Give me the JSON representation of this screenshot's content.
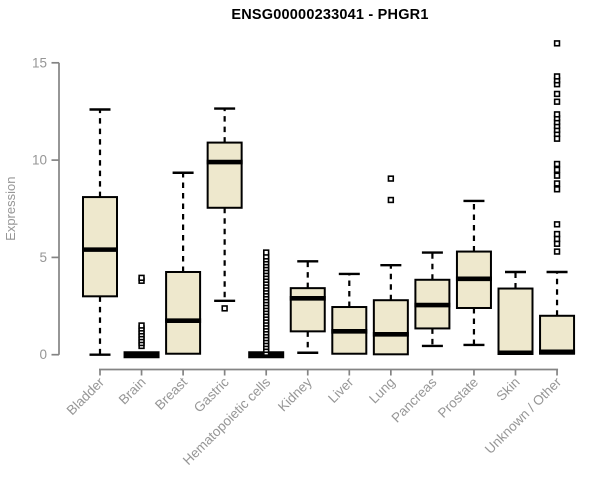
{
  "title": "ENSG00000233041 - PHGR1",
  "y_axis": {
    "label": "Expression",
    "ticks": [
      "0",
      "5",
      "10",
      "15"
    ]
  },
  "colors": {
    "box_fill": "#EEE8CD",
    "box_border": "#000000",
    "median": "#000000",
    "whisker": "#000000",
    "outlier_fill": "#FFFFFF",
    "axis_line": "#848484",
    "tick_label": "#969696",
    "axis_label": "#969696",
    "title_color": "#000000",
    "background": "#FFFFFF"
  },
  "chart_data": {
    "type": "boxplot",
    "title": "ENSG00000233041 - PHGR1",
    "xlabel": "",
    "ylabel": "Expression",
    "ylim": [
      0,
      16.5
    ],
    "yticks": [
      0,
      5,
      10,
      15
    ],
    "grid": false,
    "legend": "none",
    "categories": [
      "Bladder",
      "Brain",
      "Breast",
      "Gastric",
      "Hematopoietic cells",
      "Kidney",
      "Liver",
      "Lung",
      "Pancreas",
      "Prostate",
      "Skin",
      "Unknown / Other"
    ],
    "series": [
      {
        "name": "Bladder",
        "low": 0,
        "q1": 3.0,
        "median": 5.4,
        "q3": 8.1,
        "high": 12.6,
        "outliers": []
      },
      {
        "name": "Brain",
        "low": 0,
        "q1": 0,
        "median": 0,
        "q3": 0,
        "high": 0,
        "outliers": [
          0.45,
          0.6,
          0.75,
          0.9,
          1.05,
          1.2,
          1.35,
          1.5,
          3.8,
          3.95
        ]
      },
      {
        "name": "Breast",
        "low": 0.05,
        "q1": 0.05,
        "median": 1.75,
        "q3": 4.25,
        "high": 9.35,
        "outliers": []
      },
      {
        "name": "Gastric",
        "low": 2.77,
        "q1": 7.55,
        "median": 9.9,
        "q3": 10.9,
        "high": 12.65,
        "outliers": [
          2.38
        ]
      },
      {
        "name": "Hematopoietic cells",
        "low": 0,
        "q1": 0,
        "median": 0,
        "q3": 0,
        "high": 0,
        "outliers": [
          0.1,
          0.25,
          0.4,
          0.55,
          0.7,
          0.85,
          1.0,
          1.15,
          1.3,
          1.45,
          1.6,
          1.75,
          1.9,
          2.05,
          2.2,
          2.35,
          2.5,
          2.65,
          2.8,
          2.95,
          3.1,
          3.25,
          3.4,
          3.55,
          3.7,
          3.85,
          4.0,
          4.15,
          4.3,
          4.45,
          4.6,
          4.75,
          4.9,
          5.05,
          5.25
        ]
      },
      {
        "name": "Kidney",
        "low": 0.1,
        "q1": 1.2,
        "median": 2.9,
        "q3": 3.42,
        "high": 4.8,
        "outliers": []
      },
      {
        "name": "Liver",
        "low": 0.05,
        "q1": 0.05,
        "median": 1.2,
        "q3": 2.45,
        "high": 4.15,
        "outliers": []
      },
      {
        "name": "Lung",
        "low": 0.02,
        "q1": 0.02,
        "median": 1.05,
        "q3": 2.8,
        "high": 4.6,
        "outliers": [
          7.95,
          9.05
        ]
      },
      {
        "name": "Pancreas",
        "low": 0.45,
        "q1": 1.35,
        "median": 2.55,
        "q3": 3.85,
        "high": 5.25,
        "outliers": []
      },
      {
        "name": "Prostate",
        "low": 0.5,
        "q1": 2.4,
        "median": 3.9,
        "q3": 5.3,
        "high": 7.9,
        "outliers": []
      },
      {
        "name": "Skin",
        "low": 0.05,
        "q1": 0.05,
        "median": 0.1,
        "q3": 3.4,
        "high": 4.25,
        "outliers": []
      },
      {
        "name": "Unknown / Other",
        "low": 0.05,
        "q1": 0.05,
        "median": 0.15,
        "q3": 2.0,
        "high": 4.25,
        "outliers": [
          5.3,
          5.7,
          5.95,
          6.2,
          6.7,
          8.5,
          8.8,
          9.2,
          9.5,
          9.8,
          11.1,
          11.35,
          11.55,
          11.75,
          11.95,
          12.15,
          12.35,
          13.0,
          13.4,
          13.9,
          14.1,
          14.3,
          16.0
        ]
      }
    ]
  }
}
